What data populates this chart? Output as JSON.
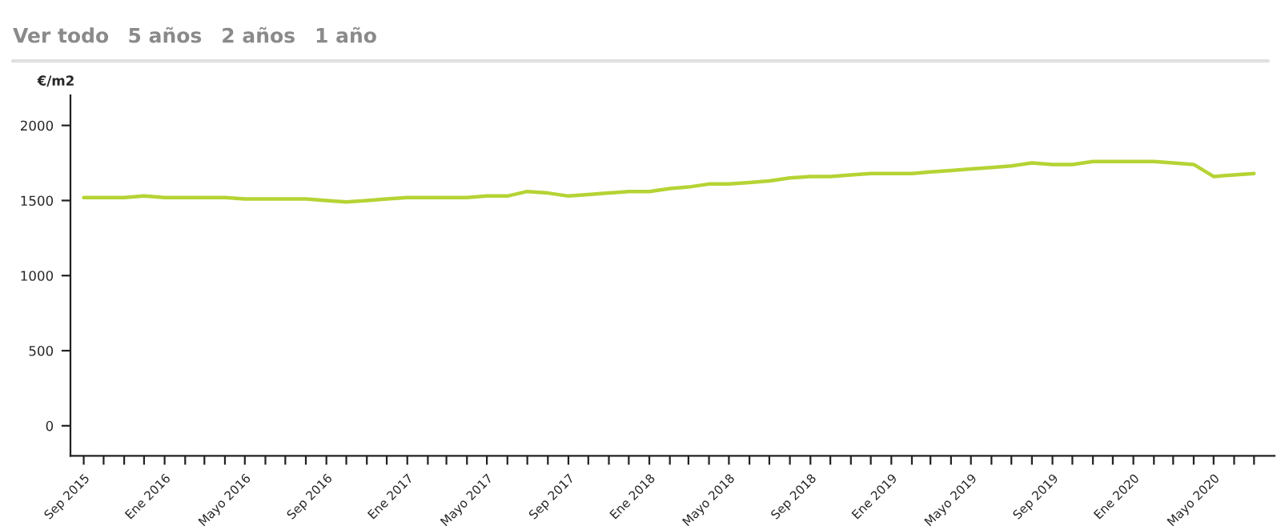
{
  "chart_data": {
    "type": "line",
    "ylabel": "€/m2",
    "annotations": [
      "Ver todo",
      "5 años",
      "2 años",
      "1 año"
    ],
    "x": [
      "2015-09",
      "2015-10",
      "2015-11",
      "2015-12",
      "2016-01",
      "2016-02",
      "2016-03",
      "2016-04",
      "2016-05",
      "2016-06",
      "2016-07",
      "2016-08",
      "2016-09",
      "2016-10",
      "2016-11",
      "2016-12",
      "2017-01",
      "2017-02",
      "2017-03",
      "2017-04",
      "2017-05",
      "2017-06",
      "2017-07",
      "2017-08",
      "2017-09",
      "2017-10",
      "2017-11",
      "2017-12",
      "2018-01",
      "2018-02",
      "2018-03",
      "2018-04",
      "2018-05",
      "2018-06",
      "2018-07",
      "2018-08",
      "2018-09",
      "2018-10",
      "2018-11",
      "2018-12",
      "2019-01",
      "2019-02",
      "2019-03",
      "2019-04",
      "2019-05",
      "2019-06",
      "2019-07",
      "2019-08",
      "2019-09",
      "2019-10",
      "2019-11",
      "2019-12",
      "2020-01",
      "2020-02",
      "2020-03",
      "2020-04",
      "2020-05",
      "2020-06",
      "2020-07"
    ],
    "series": [
      {
        "color": "#b5d334",
        "values": [
          1520,
          1520,
          1520,
          1530,
          1520,
          1520,
          1520,
          1520,
          1510,
          1510,
          1510,
          1510,
          1500,
          1490,
          1500,
          1510,
          1520,
          1520,
          1520,
          1520,
          1530,
          1530,
          1560,
          1550,
          1530,
          1540,
          1550,
          1560,
          1560,
          1580,
          1590,
          1610,
          1610,
          1620,
          1630,
          1650,
          1660,
          1660,
          1670,
          1680,
          1680,
          1680,
          1690,
          1700,
          1710,
          1720,
          1730,
          1750,
          1740,
          1740,
          1760,
          1760,
          1760,
          1760,
          1750,
          1740,
          1660,
          1670,
          1680
        ]
      }
    ],
    "ylim": [
      -200,
      2200
    ],
    "yticks": [
      0,
      500,
      1000,
      1500,
      2000
    ],
    "xlim": [
      "2015-08-12",
      "2020-08-01"
    ],
    "xticks": [
      {
        "value": "2015-09",
        "label": "Sep 2015"
      },
      {
        "value": "2015-10",
        "label": null
      },
      {
        "value": "2015-11",
        "label": null
      },
      {
        "value": "2015-12",
        "label": null
      },
      {
        "value": "2016-01",
        "label": "Ene 2016"
      },
      {
        "value": "2016-02",
        "label": null
      },
      {
        "value": "2016-03",
        "label": null
      },
      {
        "value": "2016-04",
        "label": null
      },
      {
        "value": "2016-05",
        "label": "Mayo 2016"
      },
      {
        "value": "2016-06",
        "label": null
      },
      {
        "value": "2016-07",
        "label": null
      },
      {
        "value": "2016-08",
        "label": null
      },
      {
        "value": "2016-09",
        "label": "Sep 2016"
      },
      {
        "value": "2016-10",
        "label": null
      },
      {
        "value": "2016-11",
        "label": null
      },
      {
        "value": "2016-12",
        "label": null
      },
      {
        "value": "2017-01",
        "label": "Ene 2017"
      },
      {
        "value": "2017-02",
        "label": null
      },
      {
        "value": "2017-03",
        "label": null
      },
      {
        "value": "2017-04",
        "label": null
      },
      {
        "value": "2017-05",
        "label": "Mayo 2017"
      },
      {
        "value": "2017-06",
        "label": null
      },
      {
        "value": "2017-07",
        "label": null
      },
      {
        "value": "2017-08",
        "label": null
      },
      {
        "value": "2017-09",
        "label": "Sep 2017"
      },
      {
        "value": "2017-10",
        "label": null
      },
      {
        "value": "2017-11",
        "label": null
      },
      {
        "value": "2017-12",
        "label": null
      },
      {
        "value": "2018-01",
        "label": "Ene 2018"
      },
      {
        "value": "2018-02",
        "label": null
      },
      {
        "value": "2018-03",
        "label": null
      },
      {
        "value": "2018-04",
        "label": null
      },
      {
        "value": "2018-05",
        "label": "Mayo 2018"
      },
      {
        "value": "2018-06",
        "label": null
      },
      {
        "value": "2018-07",
        "label": null
      },
      {
        "value": "2018-08",
        "label": null
      },
      {
        "value": "2018-09",
        "label": "Sep 2018"
      },
      {
        "value": "2018-10",
        "label": null
      },
      {
        "value": "2018-11",
        "label": null
      },
      {
        "value": "2018-12",
        "label": null
      },
      {
        "value": "2019-01",
        "label": "Ene 2019"
      },
      {
        "value": "2019-02",
        "label": null
      },
      {
        "value": "2019-03",
        "label": null
      },
      {
        "value": "2019-04",
        "label": null
      },
      {
        "value": "2019-05",
        "label": "Mayo 2019"
      },
      {
        "value": "2019-06",
        "label": null
      },
      {
        "value": "2019-07",
        "label": null
      },
      {
        "value": "2019-08",
        "label": null
      },
      {
        "value": "2019-09",
        "label": "Sep 2019"
      },
      {
        "value": "2019-10",
        "label": null
      },
      {
        "value": "2019-11",
        "label": null
      },
      {
        "value": "2019-12",
        "label": null
      },
      {
        "value": "2020-01",
        "label": "Ene 2020"
      },
      {
        "value": "2020-02",
        "label": null
      },
      {
        "value": "2020-03",
        "label": null
      },
      {
        "value": "2020-04",
        "label": null
      },
      {
        "value": "2020-05",
        "label": "Mayo 2020"
      },
      {
        "value": "2020-06",
        "label": null
      },
      {
        "value": "2020-07",
        "label": null
      }
    ],
    "grid": false,
    "marker": "none",
    "line_style": "solid"
  }
}
